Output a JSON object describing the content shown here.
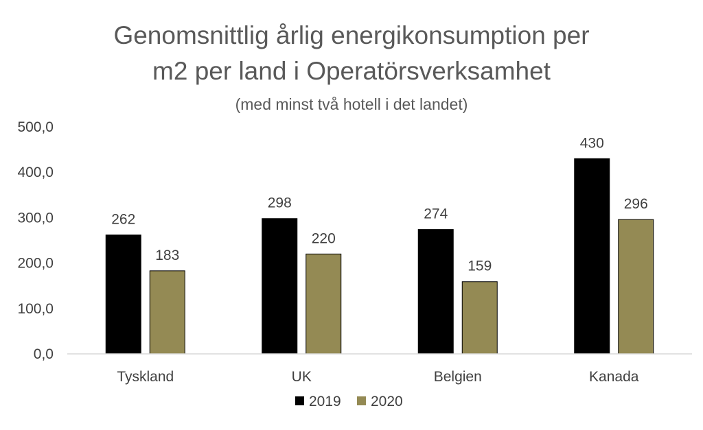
{
  "chart_data": {
    "type": "bar",
    "title_line1": "Genomsnittlig årlig energikonsumption per",
    "title_line2": "m2 per land i Operatörsverksamhet",
    "subtitle": "(med minst två hotell i det landet)",
    "categories": [
      "Tyskland",
      "UK",
      "Belgien",
      "Kanada"
    ],
    "series": [
      {
        "name": "2019",
        "values": [
          262,
          298,
          274,
          430
        ],
        "labels": [
          "262",
          "298",
          "274",
          "430"
        ],
        "color": "#000000"
      },
      {
        "name": "2020",
        "values": [
          183,
          220,
          159,
          296
        ],
        "labels": [
          "183",
          "220",
          "159",
          "296"
        ],
        "color": "#948A54"
      }
    ],
    "ylim": [
      0,
      500
    ],
    "yticks": [
      0,
      100,
      200,
      300,
      400,
      500
    ],
    "ytick_labels": [
      "0,0",
      "100,0",
      "200,0",
      "300,0",
      "400,0",
      "500,0"
    ],
    "grid": false,
    "legend_position": "bottom",
    "xlabel": "",
    "ylabel": ""
  }
}
